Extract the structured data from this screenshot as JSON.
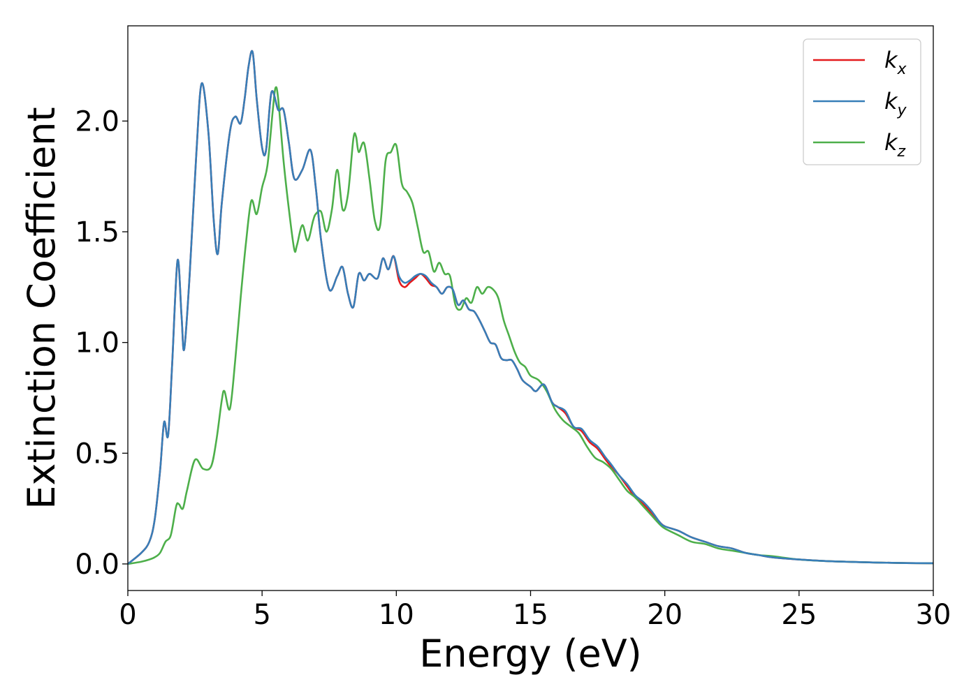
{
  "chart_data": {
    "type": "line",
    "title": "",
    "xlabel": "Energy (eV)",
    "ylabel": "Extinction Coefficient",
    "xlim": [
      0,
      30
    ],
    "ylim": [
      -0.12,
      2.43
    ],
    "xticks": [
      0,
      5,
      10,
      15,
      20,
      25,
      30
    ],
    "yticks": [
      0.0,
      0.5,
      1.0,
      1.5,
      2.0
    ],
    "xtick_labels": [
      "0",
      "5",
      "10",
      "15",
      "20",
      "25",
      "30"
    ],
    "ytick_labels": [
      "0.0",
      "0.5",
      "1.0",
      "1.5",
      "2.0"
    ],
    "grid": false,
    "legend_position": "top-right",
    "series": [
      {
        "name": "k_x",
        "legend_base": "k",
        "legend_sub": "x",
        "color": "#e41a1c",
        "x": [
          0,
          0.5,
          0.8,
          1.0,
          1.2,
          1.35,
          1.5,
          1.65,
          1.85,
          2.0,
          2.1,
          2.3,
          2.55,
          2.75,
          3.0,
          3.2,
          3.35,
          3.5,
          3.8,
          4.0,
          4.2,
          4.35,
          4.5,
          4.65,
          4.8,
          5.0,
          5.15,
          5.35,
          5.6,
          5.8,
          6.0,
          6.2,
          6.5,
          6.8,
          7.0,
          7.2,
          7.5,
          7.8,
          8.0,
          8.2,
          8.4,
          8.6,
          8.8,
          9.0,
          9.3,
          9.5,
          9.7,
          9.9,
          10.1,
          10.3,
          10.5,
          10.7,
          10.9,
          11.1,
          11.3,
          11.5,
          11.7,
          11.9,
          12.1,
          12.3,
          12.5,
          12.7,
          12.9,
          13.1,
          13.3,
          13.5,
          13.7,
          13.9,
          14.1,
          14.3,
          14.5,
          14.7,
          15.0,
          15.2,
          15.5,
          15.8,
          16.0,
          16.3,
          16.6,
          16.9,
          17.2,
          17.5,
          17.8,
          18.0,
          18.3,
          18.6,
          18.9,
          19.2,
          19.5,
          19.8,
          20.0,
          20.5,
          21.0,
          21.5,
          22.0,
          22.5,
          23.0,
          23.5,
          24.0,
          25.0,
          26.0,
          27.0,
          28.0,
          29.0,
          30.0
        ],
        "y": [
          0.0,
          0.05,
          0.1,
          0.2,
          0.42,
          0.64,
          0.58,
          0.9,
          1.37,
          1.12,
          0.97,
          1.3,
          1.85,
          2.17,
          1.95,
          1.55,
          1.4,
          1.63,
          1.95,
          2.02,
          1.99,
          2.1,
          2.25,
          2.31,
          2.1,
          1.88,
          1.87,
          2.13,
          2.05,
          2.05,
          1.9,
          1.74,
          1.78,
          1.87,
          1.7,
          1.46,
          1.24,
          1.3,
          1.34,
          1.22,
          1.16,
          1.31,
          1.28,
          1.31,
          1.29,
          1.38,
          1.33,
          1.39,
          1.28,
          1.25,
          1.27,
          1.29,
          1.31,
          1.29,
          1.26,
          1.25,
          1.22,
          1.25,
          1.24,
          1.17,
          1.19,
          1.15,
          1.14,
          1.1,
          1.05,
          1.0,
          0.99,
          0.93,
          0.92,
          0.92,
          0.88,
          0.83,
          0.8,
          0.78,
          0.81,
          0.73,
          0.71,
          0.68,
          0.62,
          0.6,
          0.55,
          0.52,
          0.47,
          0.44,
          0.4,
          0.35,
          0.3,
          0.27,
          0.23,
          0.19,
          0.17,
          0.15,
          0.12,
          0.1,
          0.08,
          0.07,
          0.05,
          0.04,
          0.03,
          0.02,
          0.013,
          0.009,
          0.006,
          0.004,
          0.003
        ]
      },
      {
        "name": "k_y",
        "legend_base": "k",
        "legend_sub": "y",
        "color": "#377eb8",
        "x": [
          0,
          0.5,
          0.8,
          1.0,
          1.2,
          1.35,
          1.5,
          1.65,
          1.85,
          2.0,
          2.1,
          2.3,
          2.55,
          2.75,
          3.0,
          3.2,
          3.35,
          3.5,
          3.8,
          4.0,
          4.2,
          4.35,
          4.5,
          4.65,
          4.8,
          5.0,
          5.15,
          5.35,
          5.6,
          5.8,
          6.0,
          6.2,
          6.5,
          6.8,
          7.0,
          7.2,
          7.5,
          7.8,
          8.0,
          8.2,
          8.4,
          8.6,
          8.8,
          9.0,
          9.3,
          9.5,
          9.7,
          9.9,
          10.1,
          10.3,
          10.5,
          10.7,
          10.9,
          11.1,
          11.3,
          11.5,
          11.7,
          11.9,
          12.1,
          12.3,
          12.5,
          12.7,
          12.9,
          13.1,
          13.3,
          13.5,
          13.7,
          13.9,
          14.1,
          14.3,
          14.5,
          14.7,
          15.0,
          15.2,
          15.5,
          15.8,
          16.0,
          16.3,
          16.6,
          16.9,
          17.2,
          17.5,
          17.8,
          18.0,
          18.3,
          18.6,
          18.9,
          19.2,
          19.5,
          19.8,
          20.0,
          20.5,
          21.0,
          21.5,
          22.0,
          22.5,
          23.0,
          23.5,
          24.0,
          25.0,
          26.0,
          27.0,
          28.0,
          29.0,
          30.0
        ],
        "y": [
          0.0,
          0.05,
          0.1,
          0.2,
          0.42,
          0.64,
          0.58,
          0.9,
          1.37,
          1.12,
          0.97,
          1.3,
          1.85,
          2.17,
          1.95,
          1.55,
          1.4,
          1.63,
          1.95,
          2.02,
          1.99,
          2.1,
          2.25,
          2.31,
          2.1,
          1.88,
          1.87,
          2.13,
          2.05,
          2.05,
          1.9,
          1.74,
          1.78,
          1.87,
          1.7,
          1.46,
          1.24,
          1.3,
          1.34,
          1.22,
          1.16,
          1.31,
          1.28,
          1.31,
          1.29,
          1.38,
          1.33,
          1.39,
          1.3,
          1.27,
          1.28,
          1.3,
          1.31,
          1.3,
          1.27,
          1.25,
          1.22,
          1.25,
          1.24,
          1.17,
          1.19,
          1.15,
          1.14,
          1.1,
          1.05,
          1.0,
          0.99,
          0.93,
          0.92,
          0.92,
          0.88,
          0.83,
          0.8,
          0.78,
          0.81,
          0.73,
          0.71,
          0.69,
          0.62,
          0.61,
          0.56,
          0.53,
          0.48,
          0.45,
          0.4,
          0.36,
          0.31,
          0.28,
          0.24,
          0.19,
          0.17,
          0.15,
          0.12,
          0.1,
          0.08,
          0.07,
          0.05,
          0.04,
          0.03,
          0.02,
          0.013,
          0.009,
          0.006,
          0.004,
          0.003
        ]
      },
      {
        "name": "k_z",
        "legend_base": "k",
        "legend_sub": "z",
        "color": "#4daf4a",
        "x": [
          0,
          0.5,
          0.8,
          1.0,
          1.2,
          1.4,
          1.6,
          1.8,
          1.9,
          2.05,
          2.2,
          2.5,
          2.8,
          3.1,
          3.3,
          3.5,
          3.6,
          3.8,
          4.0,
          4.2,
          4.4,
          4.6,
          4.8,
          5.0,
          5.2,
          5.4,
          5.5,
          5.6,
          5.8,
          6.0,
          6.2,
          6.3,
          6.5,
          6.7,
          6.9,
          7.0,
          7.2,
          7.4,
          7.6,
          7.8,
          8.0,
          8.2,
          8.4,
          8.5,
          8.6,
          8.8,
          9.0,
          9.2,
          9.4,
          9.6,
          9.8,
          10.0,
          10.2,
          10.4,
          10.6,
          10.8,
          11.0,
          11.2,
          11.4,
          11.6,
          11.8,
          12.0,
          12.2,
          12.4,
          12.6,
          12.8,
          13.0,
          13.2,
          13.4,
          13.6,
          13.8,
          14.0,
          14.2,
          14.4,
          14.6,
          14.8,
          15.0,
          15.3,
          15.6,
          15.9,
          16.2,
          16.5,
          16.8,
          17.1,
          17.4,
          17.7,
          18.0,
          18.3,
          18.6,
          18.9,
          19.2,
          19.5,
          19.8,
          20.0,
          20.5,
          21.0,
          21.5,
          22.0,
          22.5,
          23.0,
          23.5,
          24.0,
          25.0,
          26.0,
          27.0,
          28.0,
          29.0,
          30.0
        ],
        "y": [
          0.0,
          0.01,
          0.02,
          0.03,
          0.05,
          0.1,
          0.13,
          0.26,
          0.27,
          0.25,
          0.33,
          0.47,
          0.43,
          0.44,
          0.56,
          0.74,
          0.78,
          0.7,
          0.92,
          1.2,
          1.45,
          1.64,
          1.58,
          1.7,
          1.8,
          2.05,
          2.15,
          2.1,
          1.82,
          1.6,
          1.42,
          1.44,
          1.53,
          1.46,
          1.55,
          1.58,
          1.59,
          1.5,
          1.6,
          1.78,
          1.6,
          1.67,
          1.92,
          1.93,
          1.86,
          1.9,
          1.74,
          1.55,
          1.53,
          1.82,
          1.86,
          1.89,
          1.72,
          1.68,
          1.63,
          1.52,
          1.41,
          1.41,
          1.32,
          1.36,
          1.31,
          1.3,
          1.17,
          1.15,
          1.2,
          1.18,
          1.25,
          1.22,
          1.25,
          1.24,
          1.2,
          1.1,
          1.03,
          0.96,
          0.91,
          0.89,
          0.85,
          0.83,
          0.78,
          0.7,
          0.65,
          0.62,
          0.59,
          0.53,
          0.48,
          0.46,
          0.43,
          0.38,
          0.33,
          0.3,
          0.26,
          0.22,
          0.18,
          0.16,
          0.13,
          0.1,
          0.09,
          0.07,
          0.06,
          0.05,
          0.04,
          0.035,
          0.02,
          0.013,
          0.009,
          0.006,
          0.004,
          0.003
        ]
      }
    ]
  }
}
